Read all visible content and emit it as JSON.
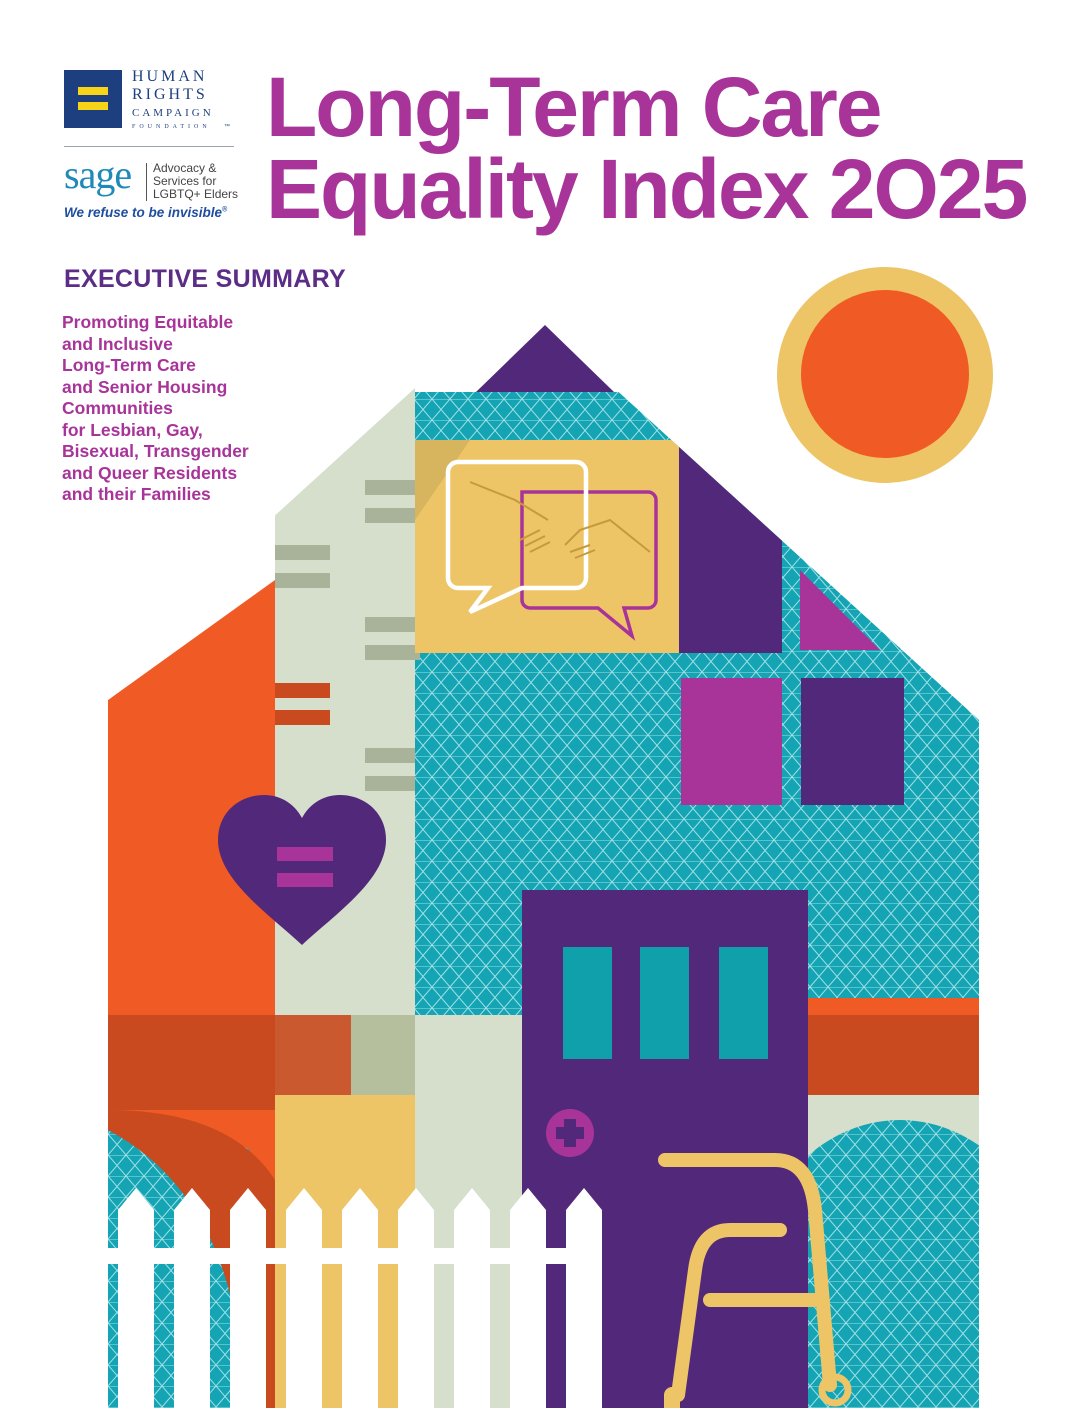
{
  "logos": {
    "hrc": {
      "line1": "HUMAN",
      "line2": "RIGHTS",
      "line3": "CAMPAIGN",
      "line4": "FOUNDATION",
      "mark": "™"
    },
    "sage": {
      "word": "sage",
      "sub_line1": "Advocacy &",
      "sub_line2": "Services for",
      "sub_line3": "LGBTQ+ Elders",
      "tagline": "We refuse to be invisible",
      "mark": "®"
    }
  },
  "title": {
    "line1": "Long-Term Care",
    "line2": "Equality Index 2O25"
  },
  "heading": "EXECUTIVE SUMMARY",
  "subtitle": {
    "line1": "Promoting Equitable",
    "line2": "and Inclusive",
    "line3": "Long-Term Care",
    "line4": "and Senior Housing",
    "line5": "Communities",
    "line6": "for Lesbian, Gay,",
    "line7": "Bisexual, Transgender",
    "line8": "and Queer Residents",
    "line9": "and their Families"
  },
  "colors": {
    "purple": "#52297a",
    "magenta": "#a8349a",
    "teal": "#15a4b3",
    "orange": "#f05a24",
    "rust": "#c94a1e",
    "gold": "#edc566",
    "sage_green": "#d6dfcc",
    "hrc_blue": "#1d3f7f",
    "hrc_yellow": "#f7d417"
  },
  "icons": {
    "speech": "speech-bubbles-handshake-icon",
    "heart": "heart-equality-icon",
    "medical": "medical-cross-icon",
    "walker": "walker-icon",
    "sun": "sun-icon"
  }
}
